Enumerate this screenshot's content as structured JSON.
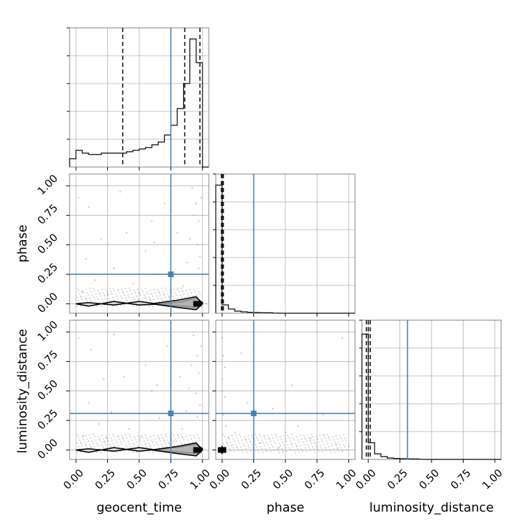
{
  "chart_data": {
    "type": "corner",
    "parameters": [
      "geocent_time",
      "phase",
      "luminosity_distance"
    ],
    "xlabels": [
      "geocent_time",
      "phase",
      "luminosity_distance"
    ],
    "ylabels": [
      "",
      "phase",
      "luminosity_distance"
    ],
    "tick_labels": [
      "0.00",
      "0.25",
      "0.50",
      "0.75",
      "1.00"
    ],
    "tick_values": [
      0,
      0.25,
      0.5,
      0.75,
      1.0
    ],
    "truths": [
      0.75,
      0.25,
      0.31
    ],
    "quantiles": [
      [
        0.37,
        0.86,
        0.98
      ],
      [
        -0.005,
        0.0,
        0.01
      ],
      [
        -0.015,
        0.0,
        0.015
      ]
    ],
    "grid": true,
    "colors": {
      "truth": "#4682b4",
      "hist": "#000000",
      "quantile": "#000000",
      "scatter": "#888888",
      "grid": "#b0b0b0",
      "spine": "#808080"
    },
    "histograms": [
      {
        "parameter": "geocent_time",
        "xlim": [
          -0.05,
          1.05
        ],
        "bin_edges": [
          -0.05,
          0.0,
          0.05,
          0.1,
          0.15,
          0.2,
          0.25,
          0.3,
          0.35,
          0.4,
          0.45,
          0.5,
          0.55,
          0.6,
          0.65,
          0.7,
          0.75,
          0.8,
          0.85,
          0.9,
          0.95,
          1.0,
          1.05
        ],
        "counts": [
          0.06,
          0.12,
          0.1,
          0.09,
          0.09,
          0.1,
          0.1,
          0.1,
          0.1,
          0.11,
          0.12,
          0.13,
          0.14,
          0.16,
          0.18,
          0.23,
          0.3,
          0.42,
          0.6,
          0.92,
          0.75,
          0.0
        ],
        "ymax": 1.0
      },
      {
        "parameter": "phase",
        "xlim": [
          -0.05,
          1.05
        ],
        "bin_edges": [
          -0.05,
          0.0,
          0.05,
          0.1,
          0.15,
          0.2,
          0.25,
          0.3,
          0.35,
          0.4,
          0.45,
          0.5,
          0.55,
          0.6,
          0.65,
          0.7,
          0.75,
          0.8,
          0.85,
          0.9,
          0.95,
          1.0,
          1.05
        ],
        "counts": [
          0.92,
          0.06,
          0.03,
          0.015,
          0.01,
          0.007,
          0.005,
          0.004,
          0.003,
          0.001,
          0,
          0,
          0,
          0,
          0,
          0,
          0,
          0,
          0,
          0,
          0,
          0
        ],
        "ymax": 1.0
      },
      {
        "parameter": "luminosity_distance",
        "xlim": [
          -0.05,
          1.05
        ],
        "bin_edges": [
          -0.05,
          0.0,
          0.05,
          0.1,
          0.15,
          0.2,
          0.25,
          0.3,
          0.35,
          0.4,
          0.45,
          0.5,
          0.55,
          0.6,
          0.65,
          0.7,
          0.75,
          0.8,
          0.85,
          0.9,
          0.95,
          1.0,
          1.05
        ],
        "counts": [
          0.9,
          0.12,
          0.04,
          0.02,
          0.01,
          0.007,
          0.005,
          0.004,
          0.003,
          0.001,
          0,
          0,
          0,
          0,
          0,
          0,
          0,
          0,
          0,
          0,
          0,
          0
        ],
        "ymax": 1.0
      }
    ],
    "scatter_panels": [
      {
        "x": "geocent_time",
        "y": "phase",
        "xlim": [
          -0.05,
          1.05
        ],
        "ylim": [
          -0.08,
          1.1
        ],
        "points": [
          [
            0.02,
            0.9
          ],
          [
            0.1,
            0.82
          ],
          [
            0.35,
            0.95
          ],
          [
            0.6,
            0.7
          ],
          [
            0.55,
            0.45
          ],
          [
            0.3,
            0.3
          ],
          [
            0.7,
            0.85
          ],
          [
            0.15,
            0.2
          ],
          [
            0.45,
            0.17
          ],
          [
            0.8,
            0.6
          ],
          [
            0.92,
            0.98
          ],
          [
            0.95,
            0.85
          ],
          [
            0.97,
            0.7
          ],
          [
            0.96,
            0.5
          ],
          [
            0.98,
            0.4
          ],
          [
            0.97,
            0.3
          ],
          [
            0.93,
            0.75
          ],
          [
            0.99,
            0.9
          ],
          [
            0.9,
            0.55
          ],
          [
            0.88,
            0.35
          ],
          [
            0.2,
            0.55
          ],
          [
            0.65,
            0.25
          ],
          [
            0.05,
            0.1
          ],
          [
            0.25,
            0.08
          ],
          [
            0.5,
            0.09
          ],
          [
            0.75,
            0.12
          ],
          [
            0.85,
            0.15
          ],
          [
            0.4,
            0.6
          ],
          [
            0.62,
            0.52
          ],
          [
            0.08,
            0.38
          ]
        ],
        "contours": [
          [
            [
              0.0,
              0.0
            ],
            [
              0.1,
              -0.02
            ],
            [
              0.3,
              0.02
            ],
            [
              0.5,
              -0.01
            ],
            [
              0.7,
              0.0
            ],
            [
              0.85,
              0.02
            ],
            [
              0.95,
              0.05
            ],
            [
              1.0,
              0.01
            ],
            [
              0.95,
              -0.03
            ],
            [
              0.85,
              -0.02
            ],
            [
              0.7,
              -0.01
            ],
            [
              0.5,
              0.02
            ],
            [
              0.3,
              -0.01
            ],
            [
              0.1,
              0.01
            ],
            [
              0.0,
              0.0
            ]
          ],
          [
            [
              0.6,
              0.0
            ],
            [
              0.8,
              0.03
            ],
            [
              0.95,
              0.06
            ],
            [
              1.0,
              0.0
            ],
            [
              0.95,
              -0.05
            ],
            [
              0.8,
              -0.03
            ],
            [
              0.6,
              0.0
            ]
          ]
        ],
        "peak": [
          0.96,
          0.0
        ]
      },
      {
        "x": "geocent_time",
        "y": "luminosity_distance",
        "xlim": [
          -0.05,
          1.05
        ],
        "ylim": [
          -0.08,
          1.1
        ],
        "points": [
          [
            0.02,
            0.95
          ],
          [
            0.12,
            0.85
          ],
          [
            0.3,
            0.98
          ],
          [
            0.55,
            0.72
          ],
          [
            0.6,
            0.5
          ],
          [
            0.28,
            0.32
          ],
          [
            0.72,
            0.88
          ],
          [
            0.18,
            0.22
          ],
          [
            0.42,
            0.18
          ],
          [
            0.82,
            0.62
          ],
          [
            0.93,
            0.97
          ],
          [
            0.96,
            0.8
          ],
          [
            0.97,
            0.65
          ],
          [
            0.95,
            0.48
          ],
          [
            0.98,
            0.38
          ],
          [
            0.96,
            0.28
          ],
          [
            0.91,
            0.72
          ],
          [
            0.99,
            0.88
          ],
          [
            0.89,
            0.52
          ],
          [
            0.87,
            0.33
          ],
          [
            0.22,
            0.6
          ],
          [
            0.66,
            0.27
          ],
          [
            0.06,
            0.12
          ],
          [
            0.24,
            0.1
          ],
          [
            0.51,
            0.11
          ],
          [
            0.76,
            0.14
          ],
          [
            0.84,
            0.18
          ],
          [
            0.38,
            0.62
          ],
          [
            0.64,
            0.55
          ],
          [
            0.1,
            0.4
          ]
        ],
        "contours": [
          [
            [
              0.0,
              0.0
            ],
            [
              0.1,
              -0.02
            ],
            [
              0.3,
              0.02
            ],
            [
              0.5,
              -0.01
            ],
            [
              0.7,
              0.01
            ],
            [
              0.85,
              0.03
            ],
            [
              0.95,
              0.05
            ],
            [
              1.0,
              0.01
            ],
            [
              0.95,
              -0.03
            ],
            [
              0.85,
              -0.02
            ],
            [
              0.7,
              -0.01
            ],
            [
              0.5,
              0.02
            ],
            [
              0.3,
              -0.01
            ],
            [
              0.1,
              0.01
            ],
            [
              0.0,
              0.0
            ]
          ],
          [
            [
              0.6,
              0.0
            ],
            [
              0.8,
              0.03
            ],
            [
              0.95,
              0.06
            ],
            [
              1.0,
              0.0
            ],
            [
              0.95,
              -0.05
            ],
            [
              0.8,
              -0.03
            ],
            [
              0.6,
              0.0
            ]
          ]
        ],
        "peak": [
          0.96,
          0.0
        ]
      },
      {
        "x": "phase",
        "y": "luminosity_distance",
        "xlim": [
          -0.05,
          1.05
        ],
        "ylim": [
          -0.08,
          1.1
        ],
        "points": [
          [
            0.0,
            0.95
          ],
          [
            0.01,
            0.8
          ],
          [
            0.0,
            0.6
          ],
          [
            0.02,
            0.45
          ],
          [
            0.01,
            0.3
          ],
          [
            0.03,
            0.2
          ],
          [
            0.0,
            0.5
          ],
          [
            0.02,
            0.7
          ],
          [
            0.95,
            0.95
          ],
          [
            0.4,
            0.35
          ],
          [
            0.25,
            0.85
          ],
          [
            0.15,
            0.82
          ],
          [
            0.5,
            0.15
          ],
          [
            0.7,
            0.1
          ],
          [
            0.9,
            0.05
          ],
          [
            0.3,
            0.06
          ],
          [
            0.6,
            0.2
          ],
          [
            0.8,
            0.3
          ],
          [
            0.05,
            0.1
          ],
          [
            0.1,
            0.15
          ],
          [
            0.45,
            0.02
          ],
          [
            0.75,
            0.02
          ],
          [
            1.0,
            0.03
          ],
          [
            0.2,
            0.4
          ],
          [
            0.55,
            0.55
          ]
        ],
        "contours": [
          [
            [
              -0.02,
              0.0
            ],
            [
              0.0,
              0.03
            ],
            [
              0.02,
              0.0
            ],
            [
              0.0,
              -0.03
            ],
            [
              -0.02,
              0.0
            ]
          ],
          [
            [
              -0.01,
              0.0
            ],
            [
              0.0,
              0.015
            ],
            [
              0.01,
              0.0
            ],
            [
              0.0,
              -0.015
            ],
            [
              -0.01,
              0.0
            ]
          ]
        ],
        "peak": [
          0.0,
          0.0
        ]
      }
    ]
  }
}
